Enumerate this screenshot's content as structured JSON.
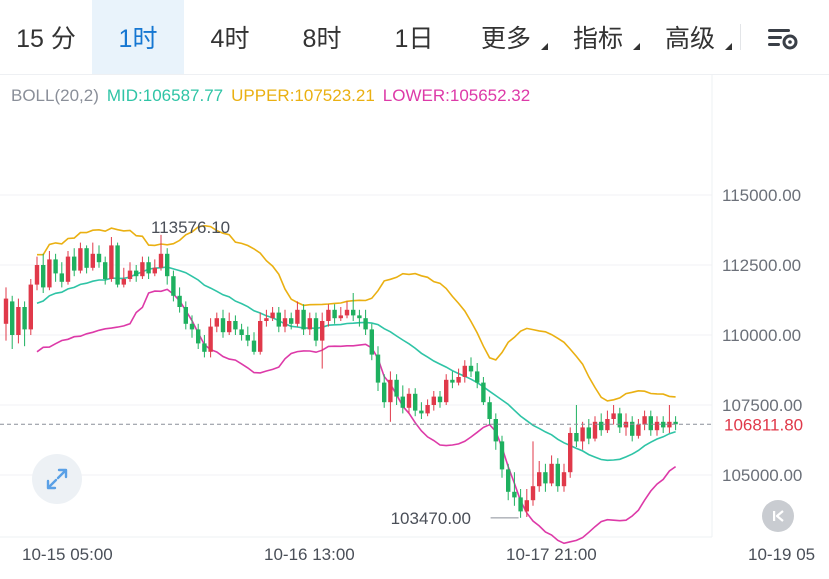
{
  "tabs": [
    {
      "label": "15 分",
      "active": false,
      "dropdown": false
    },
    {
      "label": "1时",
      "active": true,
      "dropdown": false
    },
    {
      "label": "4时",
      "active": false,
      "dropdown": false
    },
    {
      "label": "8时",
      "active": false,
      "dropdown": false
    },
    {
      "label": "1日",
      "active": false,
      "dropdown": false
    },
    {
      "label": "更多",
      "active": false,
      "dropdown": true
    },
    {
      "label": "指标",
      "active": false,
      "dropdown": true
    },
    {
      "label": "高级",
      "active": false,
      "dropdown": true
    }
  ],
  "icons": {
    "settings": "chart-settings-icon",
    "expand": "expand-icon",
    "back": "jump-to-latest-icon"
  },
  "legend": {
    "indicator": "BOLL(20,2)",
    "mid_label": "MID:106587.77",
    "upper_label": "UPPER:107523.21",
    "lower_label": "LOWER:105652.32"
  },
  "colors": {
    "up": "#e0394a",
    "down": "#1eb05f",
    "mid": "#2fc4a6",
    "upper": "#eab012",
    "lower": "#dd3aa8",
    "price_line": "#8a8f99",
    "price_label": "#e0394a",
    "active_tab": "#1677d2"
  },
  "chart_data": {
    "type": "candlestick",
    "timeframe": "1时",
    "y_ticks": [
      105000,
      107500,
      110000,
      112500,
      115000
    ],
    "y_tick_labels": [
      "105000.00",
      "107500.00",
      "110000.00",
      "112500.00",
      "115000.00"
    ],
    "x_tick_labels": [
      "10-15 05:00",
      "10-16 13:00",
      "10-17 21:00",
      "10-19 05"
    ],
    "current_price": 106811.8,
    "current_price_label": "106811.80",
    "annotations": [
      {
        "label": "113576.10",
        "value": 113576.1,
        "kind": "high"
      },
      {
        "label": "103470.00",
        "value": 103470.0,
        "kind": "low"
      }
    ],
    "bollinger": {
      "period": 20,
      "k": 2,
      "mid": 106587.77,
      "upper": 107523.21,
      "lower": 105652.32
    },
    "candles": [
      [
        110400,
        111300,
        111700,
        109800
      ],
      [
        111200,
        110000,
        111400,
        109500
      ],
      [
        110000,
        111000,
        111300,
        109700
      ],
      [
        111000,
        110200,
        111200,
        109600
      ],
      [
        110200,
        111800,
        112000,
        110000
      ],
      [
        111800,
        112500,
        112800,
        111600
      ],
      [
        112500,
        111700,
        112900,
        111500
      ],
      [
        111700,
        112700,
        113000,
        111600
      ],
      [
        112700,
        112200,
        112900,
        111900
      ],
      [
        112200,
        111900,
        112600,
        111700
      ],
      [
        111900,
        112800,
        113000,
        111800
      ],
      [
        112800,
        112300,
        113100,
        112100
      ],
      [
        112300,
        113100,
        113300,
        112200
      ],
      [
        113100,
        112400,
        113200,
        112200
      ],
      [
        112400,
        112900,
        113300,
        112300
      ],
      [
        112900,
        112600,
        113200,
        112400
      ],
      [
        112600,
        112000,
        112800,
        111800
      ],
      [
        112000,
        113200,
        113500,
        111900
      ],
      [
        113200,
        111800,
        113300,
        111700
      ],
      [
        111800,
        112000,
        112400,
        111700
      ],
      [
        112000,
        112300,
        112600,
        111900
      ],
      [
        112300,
        112100,
        112500,
        111900
      ],
      [
        112100,
        112600,
        112800,
        112000
      ],
      [
        112600,
        112200,
        112800,
        112000
      ],
      [
        112200,
        112400,
        112700,
        112100
      ],
      [
        112400,
        112900,
        113576.1,
        112300
      ],
      [
        112900,
        112100,
        113100,
        111800
      ],
      [
        112100,
        111400,
        112300,
        111200
      ],
      [
        111400,
        111000,
        111700,
        110800
      ],
      [
        111000,
        110400,
        111200,
        110200
      ],
      [
        110400,
        110200,
        110700,
        109900
      ],
      [
        110200,
        109700,
        110400,
        109500
      ],
      [
        109700,
        109400,
        110000,
        109200
      ],
      [
        109400,
        110300,
        110600,
        109200
      ],
      [
        110300,
        110600,
        110800,
        110100
      ],
      [
        110600,
        110100,
        110900,
        109900
      ],
      [
        110100,
        110500,
        110800,
        110000
      ],
      [
        110500,
        110200,
        110700,
        110000
      ],
      [
        110200,
        110000,
        110400,
        109800
      ],
      [
        110000,
        109800,
        110300,
        109600
      ],
      [
        109800,
        109400,
        110100,
        109300
      ],
      [
        109400,
        110500,
        110800,
        109300
      ],
      [
        110500,
        110600,
        110900,
        110300
      ],
      [
        110600,
        110800,
        111000,
        110500
      ],
      [
        110800,
        110300,
        111000,
        110100
      ],
      [
        110300,
        110600,
        110900,
        110100
      ],
      [
        110600,
        110400,
        110800,
        110200
      ],
      [
        110400,
        110900,
        111200,
        110300
      ],
      [
        110900,
        110200,
        111100,
        110000
      ],
      [
        110200,
        110600,
        110800,
        110000
      ],
      [
        110600,
        109800,
        110800,
        109600
      ],
      [
        109800,
        110500,
        110800,
        108800
      ],
      [
        110500,
        110900,
        111100,
        110300
      ],
      [
        110900,
        110600,
        111100,
        110400
      ],
      [
        110600,
        110700,
        111000,
        110500
      ],
      [
        110700,
        110900,
        111200,
        110600
      ],
      [
        110900,
        110700,
        111500,
        110500
      ],
      [
        110700,
        110600,
        110900,
        110300
      ],
      [
        110600,
        110200,
        110900,
        110000
      ],
      [
        110200,
        109300,
        110400,
        109100
      ],
      [
        109300,
        108300,
        109600,
        108000
      ],
      [
        108300,
        107600,
        108600,
        107400
      ],
      [
        107600,
        108400,
        108700,
        106900
      ],
      [
        108400,
        107800,
        108600,
        107500
      ],
      [
        107800,
        107400,
        108200,
        107200
      ],
      [
        107400,
        107900,
        108100,
        107200
      ],
      [
        107900,
        107300,
        108100,
        107100
      ],
      [
        107300,
        107200,
        107600,
        107000
      ],
      [
        107200,
        107500,
        107700,
        107100
      ],
      [
        107500,
        107800,
        108000,
        107300
      ],
      [
        107800,
        107600,
        108000,
        107400
      ],
      [
        107600,
        108400,
        108600,
        107500
      ],
      [
        108400,
        108300,
        108700,
        108100
      ],
      [
        108300,
        108500,
        108800,
        108200
      ],
      [
        108500,
        108900,
        109100,
        108300
      ],
      [
        108900,
        108700,
        109200,
        108500
      ],
      [
        108700,
        108300,
        109000,
        108100
      ],
      [
        108300,
        107600,
        108500,
        107500
      ],
      [
        107600,
        107000,
        107800,
        106800
      ],
      [
        107000,
        106200,
        107200,
        105900
      ],
      [
        106200,
        105200,
        106400,
        104900
      ],
      [
        105200,
        104400,
        105400,
        104100
      ],
      [
        104400,
        104200,
        105100,
        103900
      ],
      [
        104200,
        103700,
        104500,
        103470
      ],
      [
        103700,
        104100,
        104500,
        103500
      ],
      [
        104100,
        104600,
        106200,
        103900
      ],
      [
        104600,
        105100,
        105500,
        104400
      ],
      [
        105100,
        104700,
        105400,
        104400
      ],
      [
        104700,
        105400,
        105700,
        104600
      ],
      [
        105400,
        104600,
        105600,
        104400
      ],
      [
        104600,
        105100,
        105400,
        104400
      ],
      [
        105100,
        106500,
        106700,
        104900
      ],
      [
        106500,
        106200,
        107500,
        106000
      ],
      [
        106200,
        106700,
        106900,
        105900
      ],
      [
        106700,
        106300,
        107000,
        106100
      ],
      [
        106300,
        106900,
        107100,
        106200
      ],
      [
        106900,
        106600,
        107200,
        106400
      ],
      [
        106600,
        107000,
        107300,
        106500
      ],
      [
        107000,
        107200,
        107500,
        106800
      ],
      [
        107200,
        106700,
        107400,
        106500
      ],
      [
        106700,
        106900,
        107200,
        106400
      ],
      [
        106900,
        106400,
        107100,
        106200
      ],
      [
        106400,
        106800,
        107000,
        106300
      ],
      [
        106800,
        107100,
        107300,
        106600
      ],
      [
        107100,
        106600,
        107300,
        106400
      ],
      [
        106600,
        106900,
        107100,
        106400
      ],
      [
        106900,
        106700,
        107100,
        106500
      ],
      [
        106700,
        106900,
        107500,
        106500
      ],
      [
        106900,
        106812,
        107100,
        106600
      ]
    ]
  }
}
